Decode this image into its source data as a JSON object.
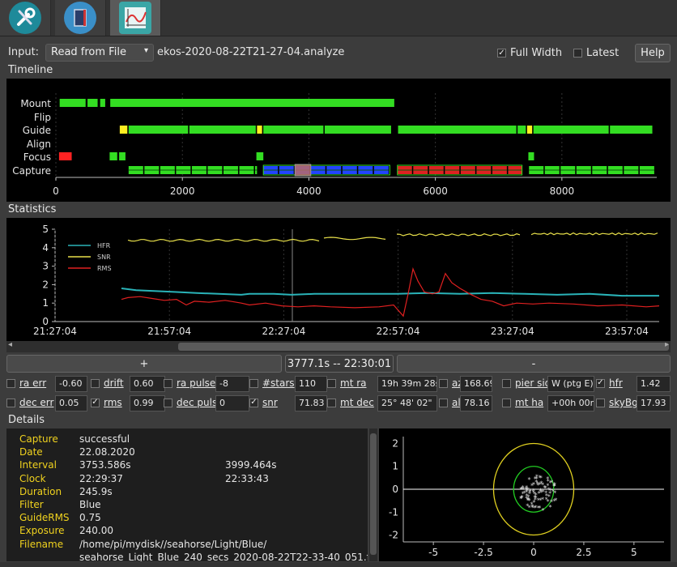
{
  "tabs": [
    {
      "name": "setup"
    },
    {
      "name": "scheduler"
    },
    {
      "name": "analyze"
    }
  ],
  "input": {
    "label": "Input:",
    "source": "Read from File",
    "filename": "ekos-2020-08-22T21-27-04.analyze"
  },
  "options": {
    "full_width": "Full Width",
    "full_width_checked": true,
    "latest": "Latest",
    "latest_checked": false,
    "help": "Help"
  },
  "timeline": {
    "title": "Timeline",
    "rows": [
      "Mount",
      "Flip",
      "Guide",
      "Align",
      "Focus",
      "Capture"
    ],
    "x_ticks": [
      "0",
      "2000",
      "4000",
      "6000",
      "8000"
    ],
    "xlim": [
      0,
      9500
    ],
    "segments": {
      "Mount": [
        [
          60,
          470,
          "#33dd22"
        ],
        [
          500,
          660,
          "#33dd22"
        ],
        [
          700,
          780,
          "#33dd22"
        ],
        [
          860,
          5350,
          "#33dd22"
        ]
      ],
      "Guide": [
        [
          1010,
          1130,
          "#ffee22"
        ],
        [
          1150,
          2090,
          "#33dd22"
        ],
        [
          2110,
          3160,
          "#33dd22"
        ],
        [
          3180,
          3260,
          "#ffee22"
        ],
        [
          3280,
          4230,
          "#33dd22"
        ],
        [
          4250,
          5300,
          "#33dd22"
        ],
        [
          5410,
          7280,
          "#33dd22"
        ],
        [
          7300,
          7430,
          "#33dd22"
        ],
        [
          7450,
          7530,
          "#ffee22"
        ],
        [
          7550,
          8740,
          "#33dd22"
        ],
        [
          8760,
          9430,
          "#33dd22"
        ]
      ],
      "Focus": [
        [
          50,
          250,
          "#ff2222"
        ],
        [
          850,
          970,
          "#33dd22"
        ],
        [
          1000,
          1100,
          "#33dd22"
        ],
        [
          3170,
          3280,
          "#33dd22"
        ],
        [
          7470,
          7560,
          "#33dd22"
        ]
      ],
      "Capture": [
        [
          1150,
          9460,
          "#33dd22"
        ]
      ]
    },
    "capture_blue": [
      3280,
      5280
    ],
    "capture_red": [
      5400,
      7370
    ],
    "capture_selected": [
      3780,
      4030
    ]
  },
  "statistics": {
    "title": "Statistics",
    "legend": [
      "HFR",
      "SNR",
      "RMS"
    ],
    "y_ticks": [
      "0",
      "1",
      "2",
      "3",
      "4",
      "5"
    ],
    "x_ticks": [
      "21:27:04",
      "21:57:04",
      "22:27:04",
      "22:57:04",
      "23:27:04",
      "23:57:04"
    ],
    "colors": {
      "hfr": "#2ab3b8",
      "snr": "#e8e04a",
      "rms": "#e02020"
    }
  },
  "chart_data": {
    "type": "line",
    "title": "",
    "xlabel": "",
    "ylabel": "",
    "ylim": [
      0,
      5
    ],
    "x": [
      "21:27:04",
      "21:57:04",
      "22:27:04",
      "22:57:04",
      "23:27:04",
      "23:57:04"
    ],
    "series": [
      {
        "name": "HFR",
        "values": [
          null,
          1.7,
          1.5,
          1.5,
          1.4,
          1.4
        ]
      },
      {
        "name": "SNR",
        "values": [
          null,
          4.4,
          4.5,
          4.7,
          4.7,
          4.7
        ]
      },
      {
        "name": "RMS",
        "values": [
          null,
          1.3,
          0.9,
          0.8,
          0.9,
          0.8
        ]
      }
    ]
  },
  "zoom": {
    "plus": "+",
    "range": "3777.1s -- 22:30:01",
    "minus": "-"
  },
  "stats_row1": [
    {
      "label": "ra err",
      "checked": false,
      "value": "-0.60"
    },
    {
      "label": "drift",
      "checked": false,
      "value": "0.60"
    },
    {
      "label": "ra pulse",
      "checked": false,
      "value": "-8"
    },
    {
      "label": "#stars",
      "checked": false,
      "value": "110"
    },
    {
      "label": "mt ra",
      "checked": false,
      "value": "19h 39m 28s"
    },
    {
      "label": "az",
      "checked": false,
      "value": "168.69"
    },
    {
      "label": "pier side",
      "checked": false,
      "value": "W (ptg E)"
    },
    {
      "label": "hfr",
      "checked": true,
      "value": "1.42"
    }
  ],
  "stats_row2": [
    {
      "label": "dec err",
      "checked": false,
      "value": "0.05"
    },
    {
      "label": "rms",
      "checked": true,
      "value": "0.99"
    },
    {
      "label": "dec pulse",
      "checked": false,
      "value": "0"
    },
    {
      "label": "snr",
      "checked": true,
      "value": "71.83"
    },
    {
      "label": "mt dec",
      "checked": false,
      "value": "25° 48' 02\""
    },
    {
      "label": "alt",
      "checked": false,
      "value": "78.16"
    },
    {
      "label": "mt ha",
      "checked": false,
      "value": "+00h 00m"
    },
    {
      "label": "skyBg",
      "checked": false,
      "value": "17.93"
    }
  ],
  "details": {
    "title": "Details",
    "rows": [
      {
        "k": "Capture",
        "v": "successful",
        "v2": ""
      },
      {
        "k": "Date",
        "v": "22.08.2020",
        "v2": ""
      },
      {
        "k": "Interval",
        "v": "3753.586s",
        "v2": "3999.464s"
      },
      {
        "k": "Clock",
        "v": "22:29:37",
        "v2": "22:33:43"
      },
      {
        "k": "Duration",
        "v": "245.9s",
        "v2": ""
      },
      {
        "k": "Filter",
        "v": "Blue",
        "v2": ""
      },
      {
        "k": "GuideRMS",
        "v": "0.75",
        "v2": ""
      },
      {
        "k": "Exposure",
        "v": "240.00",
        "v2": ""
      },
      {
        "k": "Filename",
        "v": "/home/pi/mydisk//seahorse/Light/Blue/",
        "v2": ""
      }
    ],
    "filename_line2": "seahorse_Light_Blue_240_secs_2020-08-22T22-33-40_051.fits"
  },
  "scatter": {
    "x_ticks": [
      "-5",
      "-2.5",
      "0",
      "2.5",
      "5"
    ],
    "y_ticks": [
      "2",
      "1",
      "0",
      "-1",
      "-2"
    ],
    "xlim": [
      -6.5,
      6.5
    ],
    "ylim": [
      -2.3,
      2.3
    ]
  }
}
